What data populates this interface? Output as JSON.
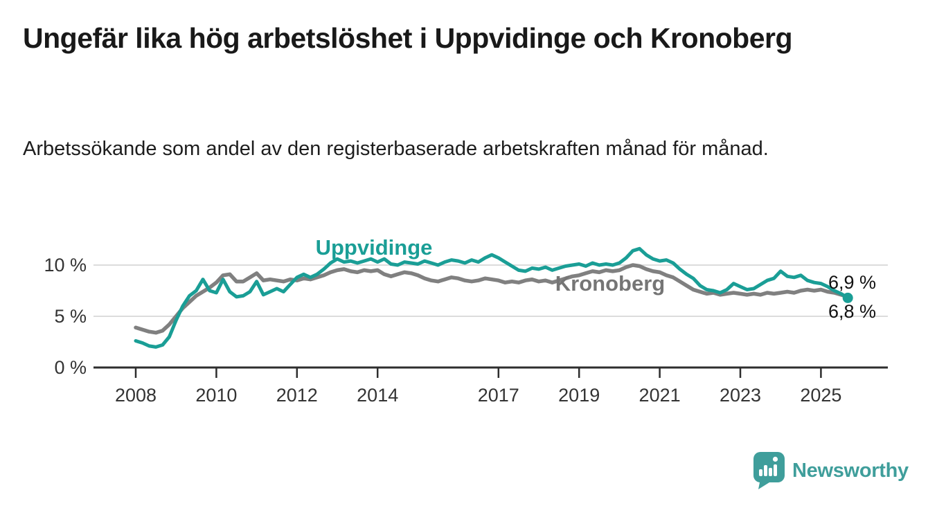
{
  "header": {
    "title": "Ungefär lika hög arbetslöshet i Uppvidinge och Kronoberg",
    "subtitle": "Arbetssökande som andel av den registerbaserade arbetskraften månad för månad."
  },
  "chart_data": {
    "type": "line",
    "title": "Ungefär lika hög arbetslöshet i Uppvidinge och Kronoberg",
    "subtitle": "Arbetssökande som andel av den registerbaserade arbetskraften månad för månad.",
    "unit": "%",
    "x_start_year": 2008.0,
    "x_step_years": 0.166667,
    "x_end_year": 2025.667,
    "ylim": [
      0,
      12.5
    ],
    "grid": "horizontal",
    "legend_position": "inline-labels",
    "y_ticks": [
      {
        "value": 0,
        "label": "0 %"
      },
      {
        "value": 5,
        "label": "5 %"
      },
      {
        "value": 10,
        "label": "10 %"
      }
    ],
    "x_ticks": [
      {
        "year": 2008,
        "label": "2008"
      },
      {
        "year": 2010,
        "label": "2010"
      },
      {
        "year": 2012,
        "label": "2012"
      },
      {
        "year": 2014,
        "label": "2014"
      },
      {
        "year": 2017,
        "label": "2017"
      },
      {
        "year": 2019,
        "label": "2019"
      },
      {
        "year": 2021,
        "label": "2021"
      },
      {
        "year": 2023,
        "label": "2023"
      },
      {
        "year": 2025,
        "label": "2025"
      }
    ],
    "series": [
      {
        "id": "line-kronoberg",
        "name": "Kronoberg",
        "color": "#808080",
        "latest_value_label": "6,9 %",
        "values": [
          3.9,
          3.7,
          3.5,
          3.4,
          3.6,
          4.2,
          5.0,
          5.8,
          6.4,
          7.0,
          7.4,
          7.8,
          8.3,
          9.0,
          9.1,
          8.4,
          8.4,
          8.8,
          9.2,
          8.5,
          8.6,
          8.5,
          8.4,
          8.6,
          8.5,
          8.7,
          8.6,
          8.8,
          9.0,
          9.3,
          9.5,
          9.6,
          9.4,
          9.3,
          9.5,
          9.4,
          9.5,
          9.1,
          8.9,
          9.1,
          9.3,
          9.2,
          9.0,
          8.7,
          8.5,
          8.4,
          8.6,
          8.8,
          8.7,
          8.5,
          8.4,
          8.5,
          8.7,
          8.6,
          8.5,
          8.3,
          8.4,
          8.3,
          8.5,
          8.6,
          8.4,
          8.5,
          8.3,
          8.5,
          8.7,
          8.9,
          9.0,
          9.2,
          9.4,
          9.3,
          9.5,
          9.4,
          9.5,
          9.8,
          10.0,
          9.9,
          9.6,
          9.4,
          9.3,
          9.0,
          8.8,
          8.4,
          8.0,
          7.6,
          7.4,
          7.2,
          7.3,
          7.1,
          7.2,
          7.3,
          7.2,
          7.1,
          7.2,
          7.1,
          7.3,
          7.2,
          7.3,
          7.4,
          7.3,
          7.5,
          7.6,
          7.5,
          7.6,
          7.4,
          7.3,
          7.1,
          6.9
        ]
      },
      {
        "id": "line-uppvidinge",
        "name": "Uppvidinge",
        "color": "#1a9e96",
        "latest_value_label": "6,8 %",
        "values": [
          2.6,
          2.4,
          2.1,
          2.0,
          2.2,
          3.0,
          4.6,
          6.0,
          7.0,
          7.5,
          8.6,
          7.5,
          7.3,
          8.6,
          7.4,
          6.9,
          7.0,
          7.4,
          8.4,
          7.1,
          7.4,
          7.7,
          7.4,
          8.1,
          8.8,
          9.1,
          8.8,
          9.1,
          9.6,
          10.2,
          10.6,
          10.3,
          10.4,
          10.2,
          10.4,
          10.6,
          10.3,
          10.6,
          10.1,
          10.0,
          10.3,
          10.2,
          10.1,
          10.4,
          10.2,
          10.0,
          10.3,
          10.5,
          10.4,
          10.2,
          10.5,
          10.3,
          10.7,
          11.0,
          10.7,
          10.3,
          9.9,
          9.5,
          9.4,
          9.7,
          9.6,
          9.8,
          9.5,
          9.7,
          9.9,
          10.0,
          10.1,
          9.9,
          10.2,
          10.0,
          10.1,
          10.0,
          10.2,
          10.7,
          11.4,
          11.6,
          11.0,
          10.6,
          10.4,
          10.5,
          10.2,
          9.6,
          9.1,
          8.7,
          8.0,
          7.6,
          7.5,
          7.3,
          7.6,
          8.2,
          7.9,
          7.6,
          7.7,
          8.1,
          8.5,
          8.7,
          9.4,
          8.9,
          8.8,
          9.0,
          8.5,
          8.3,
          8.2,
          7.9,
          7.5,
          7.2,
          6.8
        ]
      }
    ],
    "annotations": {
      "uppvidinge_label": "Uppvidinge",
      "kronoberg_label": "Kronoberg",
      "end_value_top": "6,9 %",
      "end_value_bottom": "6,8 %"
    }
  },
  "footer": {
    "brand": "Newsworthy"
  },
  "colors": {
    "uppvidinge": "#1a9e96",
    "kronoberg": "#808080",
    "kronoberg_label": "#757575",
    "brand_teal": "#3f9e9b",
    "grid": "#dcdcdc",
    "axis": "#2d2d2d",
    "text_dark": "#191919"
  }
}
